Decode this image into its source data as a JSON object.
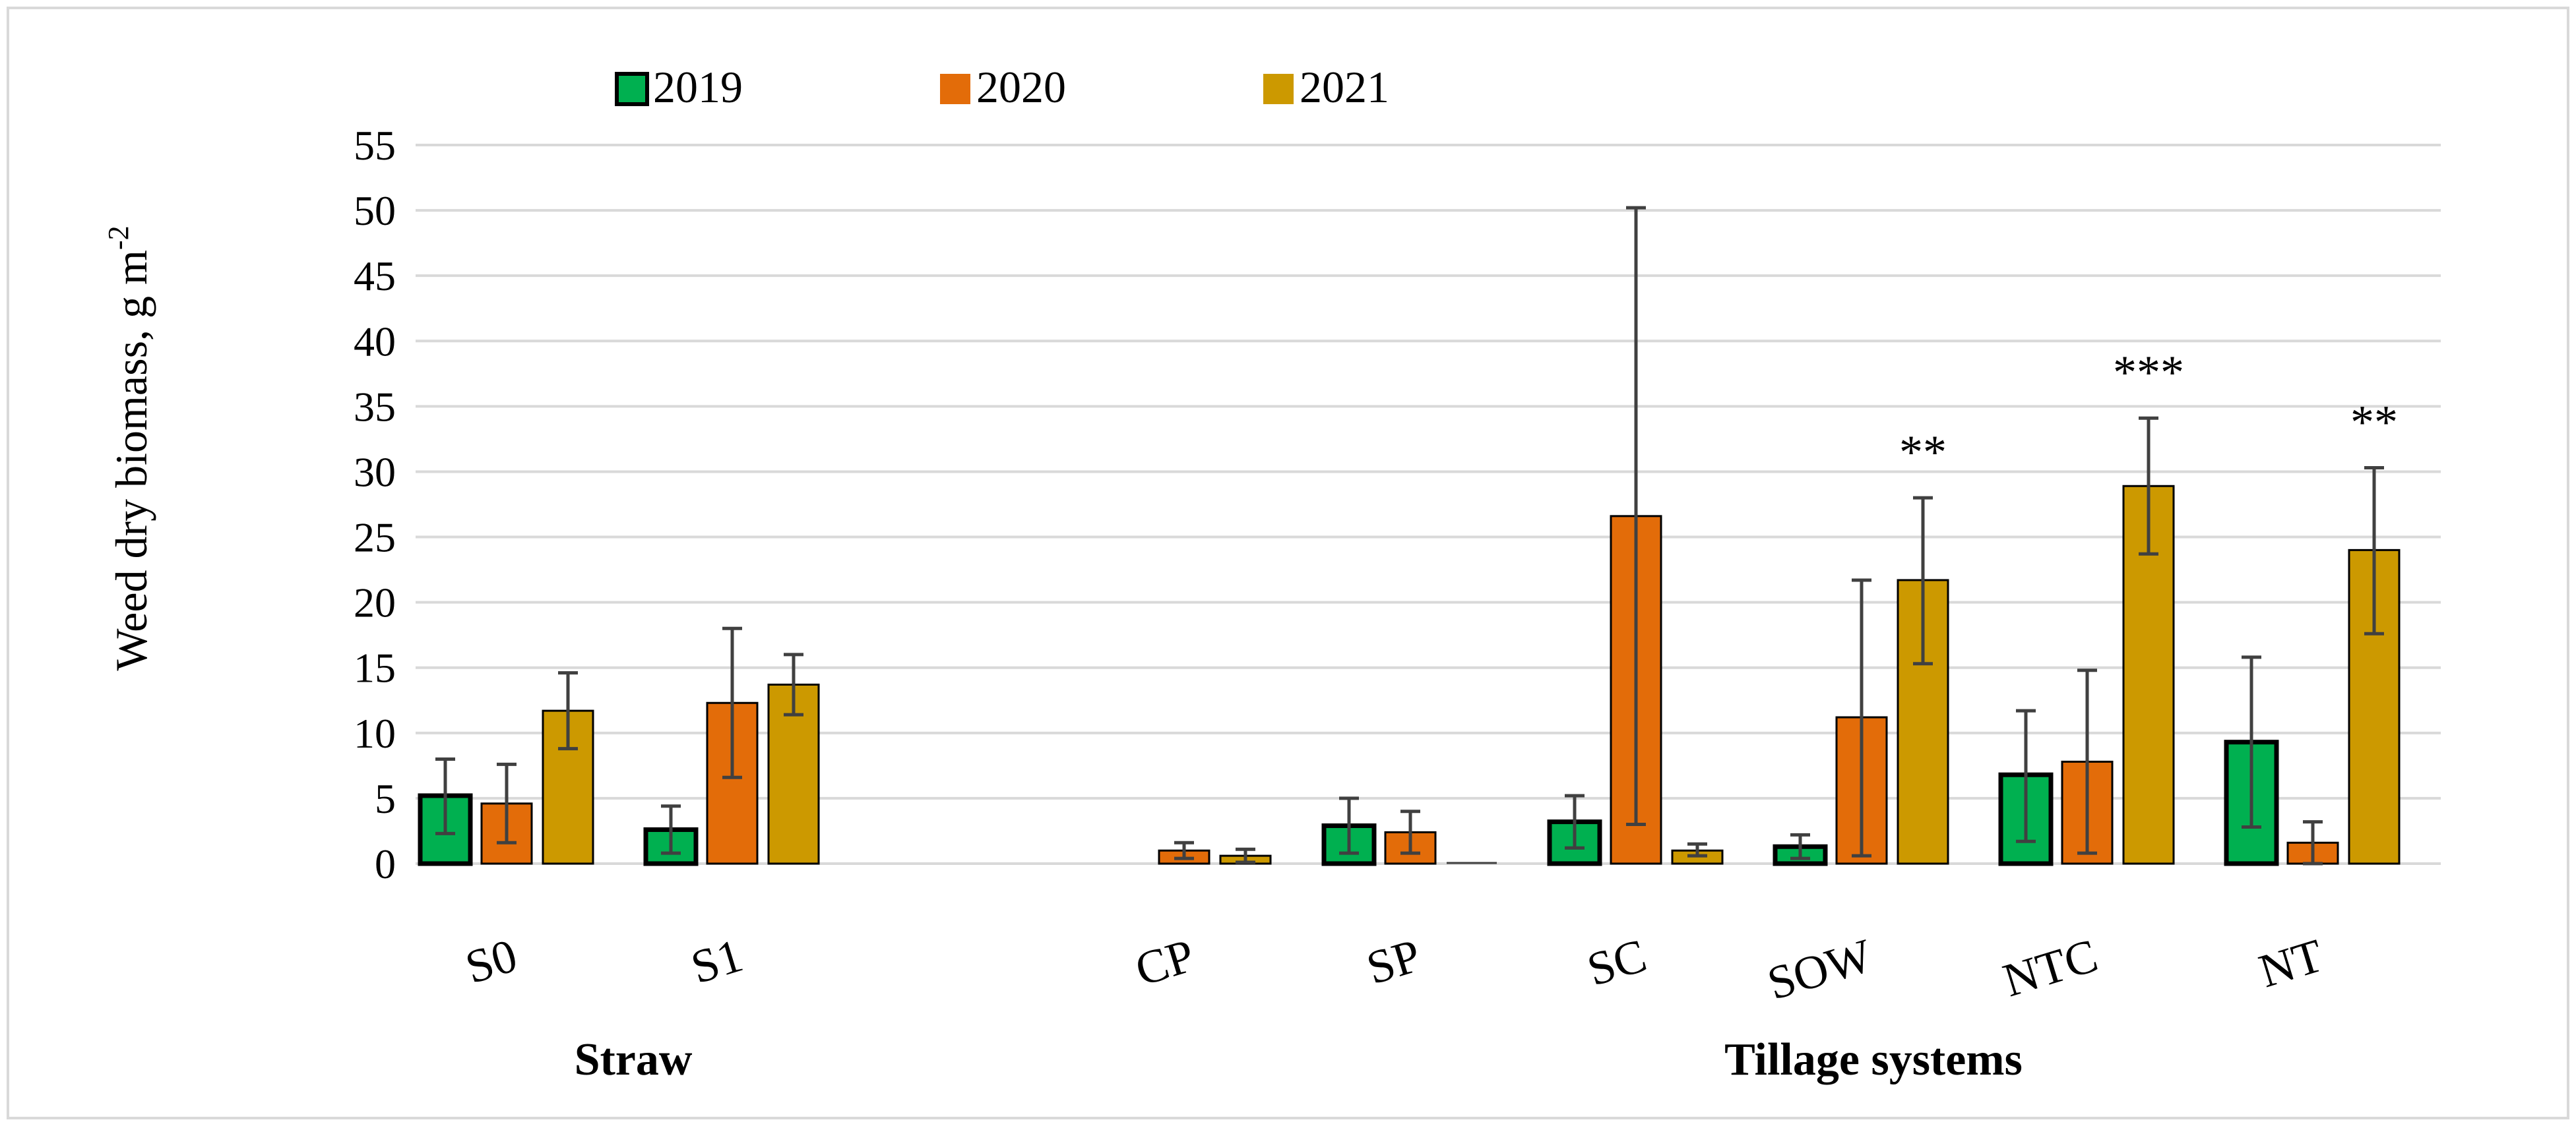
{
  "chart_data": {
    "type": "bar",
    "ylabel": "Weed dry biomass, g m",
    "ylabel_superscript": "-2",
    "ylim": [
      0,
      55
    ],
    "yticks": [
      0,
      5,
      10,
      15,
      20,
      25,
      30,
      35,
      40,
      45,
      50,
      55
    ],
    "grid": true,
    "legend_position": "top-left",
    "categories": [
      "S0",
      "S1",
      "CP",
      "SP",
      "SC",
      "SOW",
      "NTC",
      "NT"
    ],
    "groups": [
      {
        "label": "Straw",
        "categories": [
          "S0",
          "S1"
        ]
      },
      {
        "label": "Tillage systems",
        "categories": [
          "CP",
          "SP",
          "SC",
          "SOW",
          "NTC",
          "NT"
        ]
      }
    ],
    "series": [
      {
        "name": "2019",
        "color": "#00b050",
        "values": [
          5.2,
          2.6,
          null,
          2.9,
          3.2,
          1.3,
          6.8,
          9.3
        ],
        "error_low": [
          2.3,
          0.8,
          null,
          0.8,
          1.2,
          0.4,
          1.7,
          2.8
        ],
        "error_high": [
          8.0,
          4.4,
          null,
          5.0,
          5.2,
          2.2,
          11.7,
          15.8
        ]
      },
      {
        "name": "2020",
        "color": "#e36c09",
        "values": [
          4.6,
          12.3,
          1.0,
          2.4,
          26.6,
          11.2,
          7.8,
          1.6
        ],
        "error_low": [
          1.6,
          6.6,
          0.4,
          0.8,
          3.0,
          0.6,
          0.8,
          0.0
        ],
        "error_high": [
          7.6,
          18.0,
          1.6,
          4.0,
          50.2,
          21.7,
          14.8,
          3.2
        ]
      },
      {
        "name": "2021",
        "color": "#cc9900",
        "values": [
          11.7,
          13.7,
          0.6,
          0.0,
          1.0,
          21.7,
          28.9,
          24.0
        ],
        "error_low": [
          8.8,
          11.4,
          0.1,
          0.0,
          0.6,
          15.3,
          23.7,
          17.6
        ],
        "error_high": [
          14.6,
          16.0,
          1.1,
          0.0,
          1.5,
          28.0,
          34.1,
          30.3
        ]
      }
    ],
    "annotations": [
      {
        "category": "SOW",
        "series": "2021",
        "text": "**"
      },
      {
        "category": "NTC",
        "series": "2021",
        "text": "***"
      },
      {
        "category": "NT",
        "series": "2021",
        "text": "**"
      }
    ]
  }
}
